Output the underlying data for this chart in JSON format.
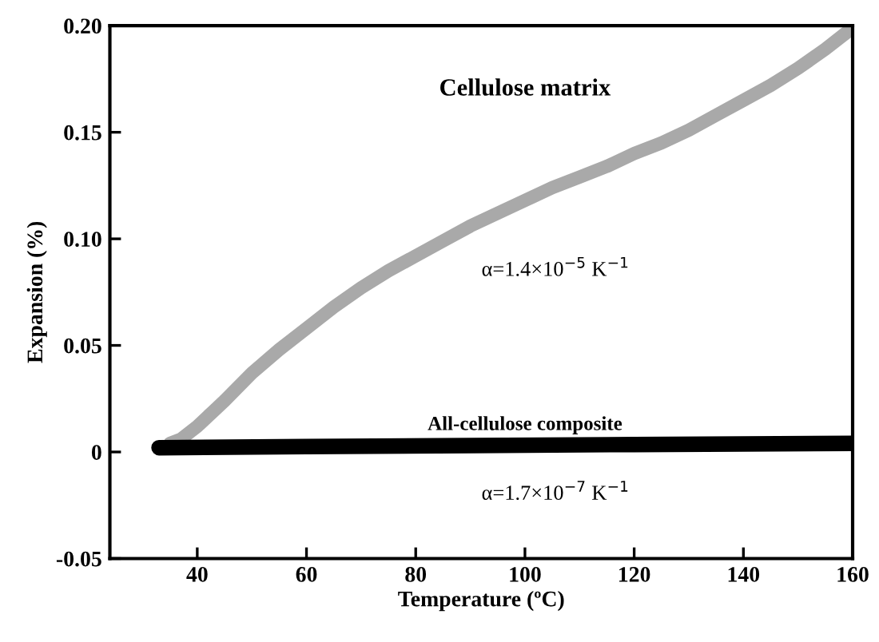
{
  "chart_data": {
    "type": "line",
    "xlabel": "Temperature (ºC)",
    "ylabel": "Expansion (%)",
    "xlim": [
      24,
      160
    ],
    "xticks": [
      40,
      60,
      80,
      100,
      120,
      140,
      160
    ],
    "ylim": [
      -0.05,
      0.2
    ],
    "yticks": [
      {
        "value": -0.05,
        "label": "-0.05"
      },
      {
        "value": 0,
        "label": "0"
      },
      {
        "value": 0.05,
        "label": "0.05"
      },
      {
        "value": 0.1,
        "label": "0.10"
      },
      {
        "value": 0.15,
        "label": "0.15"
      },
      {
        "value": 0.2,
        "label": "0.20"
      }
    ],
    "grid": false,
    "legend": false,
    "marker": "none",
    "line_style": "solid",
    "series": [
      {
        "name": "Cellulose matrix",
        "color": "#a9a9a9",
        "x": [
          35,
          37,
          40,
          45,
          50,
          55,
          60,
          65,
          70,
          75,
          80,
          85,
          90,
          95,
          100,
          105,
          110,
          115,
          120,
          125,
          130,
          135,
          140,
          145,
          150,
          155,
          159
        ],
        "values": [
          0.004,
          0.006,
          0.012,
          0.024,
          0.037,
          0.048,
          0.058,
          0.068,
          0.077,
          0.085,
          0.092,
          0.099,
          0.106,
          0.112,
          0.118,
          0.124,
          0.129,
          0.134,
          0.14,
          0.145,
          0.151,
          0.158,
          0.165,
          0.172,
          0.18,
          0.189,
          0.197
        ]
      },
      {
        "name": "All-cellulose composite",
        "color": "#000000",
        "x": [
          33,
          60,
          90,
          120,
          160
        ],
        "values": [
          0.002,
          0.0025,
          0.003,
          0.0035,
          0.004
        ]
      }
    ],
    "annotations": [
      "α=1.4×10$^{−5}$ K$^{−1}$",
      "α=1.7×10$^{−7}$ K$^{−1}$"
    ]
  }
}
